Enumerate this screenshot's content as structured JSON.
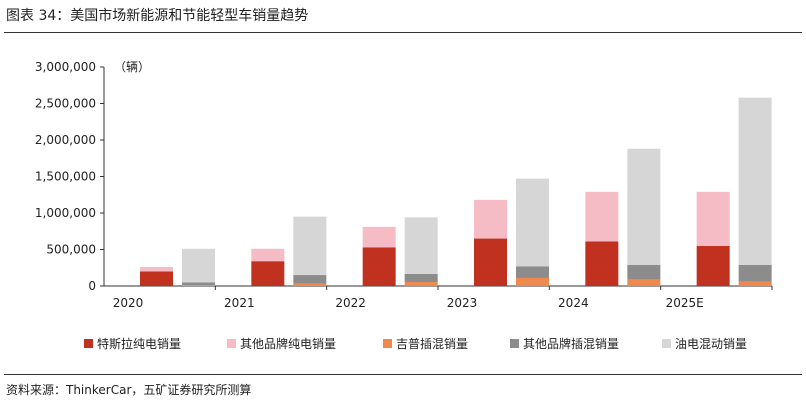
{
  "figure": {
    "title": "图表 34：美国市场新能源和节能轻型车销量趋势",
    "source": "资料来源：ThinkerCar，五矿证券研究所测算"
  },
  "chart_data": {
    "type": "bar",
    "stacked": true,
    "categories": [
      "2020",
      "2021",
      "2022",
      "2023",
      "2024",
      "2025E"
    ],
    "unit_label": "（辆）",
    "ylim": [
      0,
      3000000
    ],
    "yticks": [
      0,
      500000,
      1000000,
      1500000,
      2000000,
      2500000,
      3000000
    ],
    "ytick_labels": [
      "0",
      "500,000",
      "1,000,000",
      "1,500,000",
      "2,000,000",
      "2,500,000",
      "3,000,000"
    ],
    "grid": false,
    "legend_position": "bottom",
    "stacks": [
      {
        "stack": "bev",
        "series": [
          {
            "name": "特斯拉纯电销量",
            "color": "#c0311f",
            "values": [
              200000,
              340000,
              530000,
              650000,
              610000,
              550000
            ]
          },
          {
            "name": "其他品牌纯电销量",
            "color": "#f5bcc6",
            "values": [
              60000,
              170000,
              280000,
              530000,
              680000,
              740000
            ]
          }
        ]
      },
      {
        "stack": "hybrid",
        "series": [
          {
            "name": "吉普插混销量",
            "color": "#ef8a4e",
            "values": [
              10000,
              30000,
              55000,
              110000,
              90000,
              60000
            ]
          },
          {
            "name": "其他品牌插混销量",
            "color": "#8c8c8c",
            "values": [
              40000,
              120000,
              110000,
              160000,
              200000,
              230000
            ]
          },
          {
            "name": "油电混动销量",
            "color": "#d6d6d6",
            "values": [
              460000,
              800000,
              775000,
              1200000,
              1590000,
              2290000
            ]
          }
        ]
      }
    ],
    "legend": [
      "特斯拉纯电销量",
      "其他品牌纯电销量",
      "吉普插混销量",
      "其他品牌插混销量",
      "油电混动销量"
    ]
  }
}
